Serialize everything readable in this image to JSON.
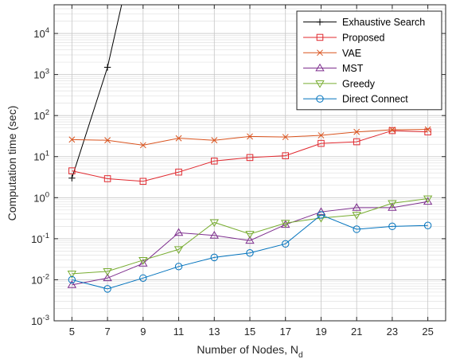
{
  "chart_data": {
    "type": "line",
    "xlabel": "Number of Nodes, N",
    "xlabel_sub": "d",
    "ylabel": "Computation time (sec)",
    "yscale": "log",
    "xlim": [
      4,
      26
    ],
    "ylim": [
      0.001,
      50000
    ],
    "grid": "on",
    "legend_position": "top-right",
    "x_ticks": [
      5,
      7,
      9,
      11,
      13,
      15,
      17,
      19,
      21,
      23,
      25
    ],
    "y_ticks": [
      {
        "value": 0.001,
        "label": "10",
        "exp": "-3"
      },
      {
        "value": 0.01,
        "label": "10",
        "exp": "-2"
      },
      {
        "value": 0.1,
        "label": "10",
        "exp": "-1"
      },
      {
        "value": 1,
        "label": "10",
        "exp": "0"
      },
      {
        "value": 10,
        "label": "10",
        "exp": "1"
      },
      {
        "value": 100,
        "label": "10",
        "exp": "2"
      },
      {
        "value": 1000,
        "label": "10",
        "exp": "3"
      },
      {
        "value": 10000,
        "label": "10",
        "exp": "4"
      }
    ],
    "series": [
      {
        "name": "Exhaustive Search",
        "color": "#000000",
        "marker": "plus",
        "x": [
          5,
          7,
          7.9
        ],
        "y": [
          3.0,
          1500,
          80000
        ]
      },
      {
        "name": "Proposed",
        "color": "#e0282e",
        "marker": "square",
        "x": [
          5,
          7,
          9,
          11,
          13,
          15,
          17,
          19,
          21,
          23,
          25
        ],
        "y": [
          4.5,
          2.9,
          2.5,
          4.2,
          7.8,
          9.5,
          10.5,
          21,
          23,
          43,
          40
        ]
      },
      {
        "name": "VAE",
        "color": "#d9531e",
        "marker": "x",
        "x": [
          5,
          7,
          9,
          11,
          13,
          15,
          17,
          19,
          21,
          23,
          25
        ],
        "y": [
          26,
          25,
          19,
          28,
          25,
          31,
          30,
          33,
          40,
          45,
          46
        ]
      },
      {
        "name": "MST",
        "color": "#7e2f8e",
        "marker": "triangle-up",
        "x": [
          5,
          7,
          9,
          11,
          13,
          15,
          17,
          19,
          21,
          23,
          25
        ],
        "y": [
          0.0075,
          0.011,
          0.025,
          0.14,
          0.12,
          0.09,
          0.22,
          0.45,
          0.57,
          0.57,
          0.8
        ]
      },
      {
        "name": "Greedy",
        "color": "#77ac30",
        "marker": "triangle-down",
        "x": [
          5,
          7,
          9,
          11,
          13,
          15,
          17,
          19,
          21,
          23,
          25
        ],
        "y": [
          0.014,
          0.016,
          0.03,
          0.055,
          0.25,
          0.13,
          0.24,
          0.32,
          0.38,
          0.73,
          0.95
        ]
      },
      {
        "name": "Direct Connect",
        "color": "#0072bd",
        "marker": "circle",
        "x": [
          5,
          7,
          9,
          11,
          13,
          15,
          17,
          19,
          21,
          23,
          25
        ],
        "y": [
          0.01,
          0.006,
          0.011,
          0.021,
          0.035,
          0.045,
          0.075,
          0.38,
          0.17,
          0.2,
          0.21
        ]
      }
    ]
  }
}
